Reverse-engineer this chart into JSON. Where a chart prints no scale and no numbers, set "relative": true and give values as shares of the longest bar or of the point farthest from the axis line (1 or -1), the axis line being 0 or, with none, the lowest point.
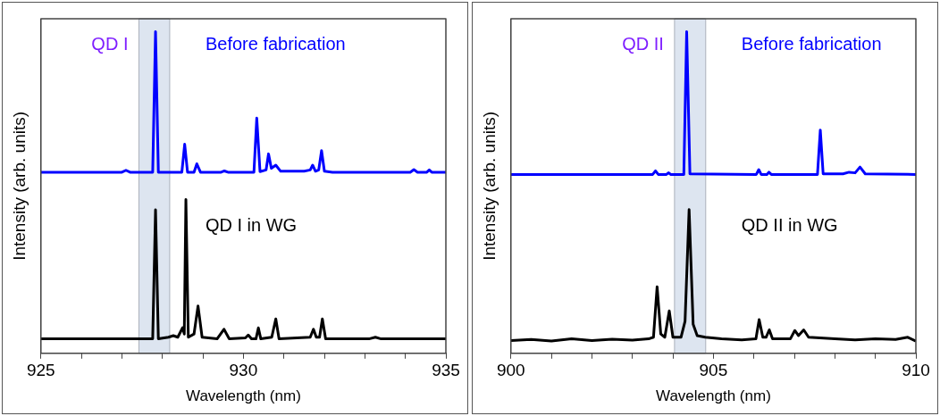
{
  "chart_data": [
    {
      "type": "line",
      "relative": true,
      "xlabel": "Wavelength (nm)",
      "ylabel": "Intensity (arb. units)",
      "xlim": [
        925,
        935
      ],
      "xticks": [
        925,
        {
          "value": 926,
          "label": null
        },
        {
          "value": 927,
          "label": null
        },
        {
          "value": 928,
          "label": null
        },
        {
          "value": 929,
          "label": null
        },
        930,
        {
          "value": 931,
          "label": null
        },
        {
          "value": 932,
          "label": null
        },
        {
          "value": 933,
          "label": null
        },
        {
          "value": 934,
          "label": null
        },
        935
      ],
      "grid": false,
      "legend": false,
      "marker": "none",
      "line_style": "solid",
      "bands": [
        {
          "axis": "x",
          "from": 927.42,
          "to": 928.18,
          "label": "QD I",
          "color": "#dde5f0"
        }
      ],
      "series": [
        {
          "name": "Before fabrication",
          "color": "#0000ff",
          "x": [
            925,
            927.0,
            927.1,
            927.2,
            927.76,
            927.83,
            927.9,
            928.48,
            928.55,
            928.62,
            928.78,
            928.85,
            928.94,
            929.45,
            929.53,
            929.62,
            930.26,
            930.33,
            930.41,
            930.56,
            930.62,
            930.69,
            930.8,
            930.92,
            931.5,
            931.65,
            931.71,
            931.78,
            931.86,
            931.93,
            932.0,
            932.2,
            934.12,
            934.21,
            934.3,
            934.53,
            934.59,
            934.65,
            935
          ],
          "values": [
            0.563,
            0.563,
            0.569,
            0.563,
            0.563,
            1.0,
            0.563,
            0.563,
            0.65,
            0.563,
            0.563,
            0.589,
            0.563,
            0.563,
            0.567,
            0.563,
            0.563,
            0.731,
            0.565,
            0.57,
            0.62,
            0.575,
            0.585,
            0.566,
            0.566,
            0.57,
            0.585,
            0.566,
            0.57,
            0.63,
            0.566,
            0.563,
            0.563,
            0.571,
            0.563,
            0.563,
            0.57,
            0.563,
            0.563
          ]
        },
        {
          "name": "QD I in WG",
          "color": "#000000",
          "x": [
            925,
            927.0,
            927.76,
            927.83,
            927.9,
            928.15,
            928.27,
            928.38,
            928.5,
            928.54,
            928.58,
            928.64,
            928.78,
            928.88,
            928.98,
            929.35,
            929.52,
            929.65,
            930.05,
            930.12,
            930.2,
            930.31,
            930.37,
            930.43,
            930.7,
            930.8,
            930.88,
            931.65,
            931.73,
            931.8,
            931.88,
            931.95,
            932.03,
            933.1,
            933.26,
            933.4,
            935
          ],
          "values": [
            0.045,
            0.045,
            0.045,
            0.446,
            0.045,
            0.05,
            0.055,
            0.05,
            0.08,
            0.06,
            0.478,
            0.05,
            0.06,
            0.147,
            0.05,
            0.045,
            0.075,
            0.045,
            0.048,
            0.057,
            0.045,
            0.045,
            0.079,
            0.045,
            0.05,
            0.107,
            0.045,
            0.05,
            0.075,
            0.05,
            0.05,
            0.107,
            0.045,
            0.045,
            0.05,
            0.045,
            0.045
          ]
        }
      ]
    },
    {
      "type": "line",
      "relative": true,
      "xlabel": "Wavelength (nm)",
      "ylabel": "Intensity (arb. units)",
      "xlim": [
        900,
        910
      ],
      "xticks": [
        900,
        {
          "value": 901,
          "label": null
        },
        {
          "value": 902,
          "label": null
        },
        {
          "value": 903,
          "label": null
        },
        {
          "value": 904,
          "label": null
        },
        905,
        {
          "value": 906,
          "label": null
        },
        {
          "value": 907,
          "label": null
        },
        {
          "value": 908,
          "label": null
        },
        {
          "value": 909,
          "label": null
        },
        910
      ],
      "grid": false,
      "legend": false,
      "marker": "none",
      "line_style": "solid",
      "bands": [
        {
          "axis": "x",
          "from": 904.04,
          "to": 904.81,
          "label": "QD II",
          "color": "#dde5f0"
        }
      ],
      "series": [
        {
          "name": "Before fabrication",
          "color": "#0000ff",
          "x": [
            900,
            903.5,
            903.57,
            903.64,
            903.84,
            903.89,
            903.95,
            904.27,
            904.34,
            904.42,
            906.06,
            906.12,
            906.18,
            906.32,
            906.37,
            906.43,
            907.57,
            907.64,
            907.71,
            908.2,
            908.35,
            908.5,
            908.62,
            908.75,
            910
          ],
          "values": [
            0.556,
            0.556,
            0.567,
            0.556,
            0.556,
            0.561,
            0.556,
            0.556,
            1.0,
            0.558,
            0.556,
            0.571,
            0.556,
            0.556,
            0.563,
            0.556,
            0.556,
            0.694,
            0.558,
            0.558,
            0.563,
            0.561,
            0.579,
            0.558,
            0.556
          ]
        },
        {
          "name": "QD II in WG",
          "color": "#000000",
          "x": [
            900,
            900.5,
            901,
            901.5,
            902,
            902.5,
            903,
            903.4,
            903.52,
            903.61,
            903.7,
            903.8,
            903.91,
            904.0,
            904.2,
            904.3,
            904.4,
            904.5,
            904.6,
            904.8,
            905.2,
            905.7,
            906.05,
            906.13,
            906.22,
            906.3,
            906.38,
            906.46,
            906.9,
            907.01,
            907.1,
            907.23,
            907.35,
            908,
            908.5,
            909,
            909.5,
            909.8,
            910
          ],
          "values": [
            0.04,
            0.043,
            0.038,
            0.045,
            0.04,
            0.044,
            0.041,
            0.045,
            0.05,
            0.207,
            0.06,
            0.05,
            0.132,
            0.05,
            0.05,
            0.1,
            0.447,
            0.09,
            0.055,
            0.05,
            0.045,
            0.042,
            0.045,
            0.105,
            0.05,
            0.05,
            0.073,
            0.045,
            0.045,
            0.071,
            0.055,
            0.073,
            0.05,
            0.045,
            0.042,
            0.045,
            0.043,
            0.05,
            0.038
          ]
        }
      ]
    }
  ]
}
